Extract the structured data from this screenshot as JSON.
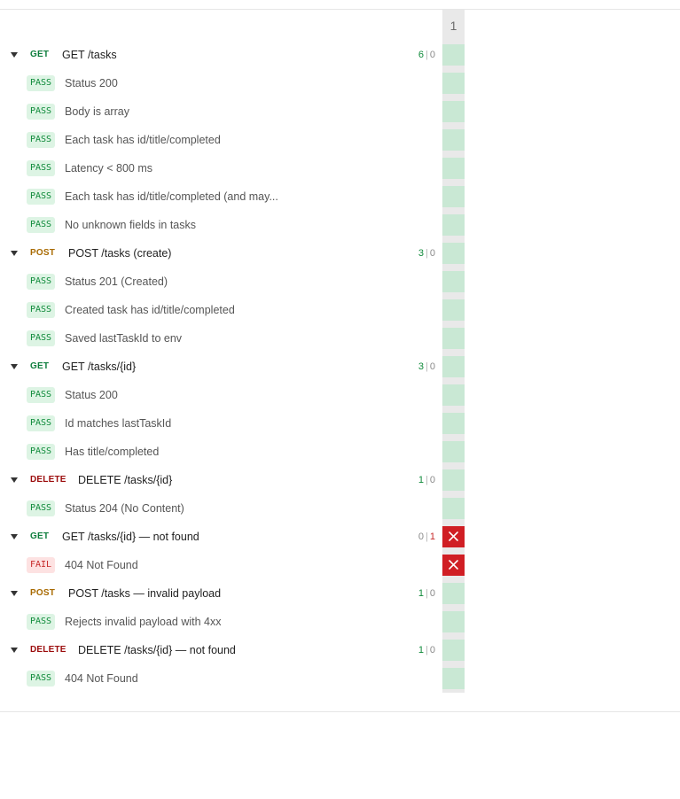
{
  "column_header": "1",
  "colors": {
    "pass_text": "#0f8a3a",
    "pass_bg": "#ddf4e4",
    "fail_text": "#c62828",
    "fail_bg": "#fde2e2",
    "get": "#0d7d3c",
    "post": "#a86a00",
    "delete": "#9b0b0b",
    "pass_cell": "#c9e8d4",
    "fail_cell": "#d01e24"
  },
  "groups": [
    {
      "method": "GET",
      "name": "GET /tasks",
      "passed": "6",
      "failed": "0",
      "result": "pass",
      "tests": [
        {
          "status": "PASS",
          "name": "Status 200"
        },
        {
          "status": "PASS",
          "name": "Body is array"
        },
        {
          "status": "PASS",
          "name": "Each task has id/title/completed"
        },
        {
          "status": "PASS",
          "name": "Latency < 800 ms"
        },
        {
          "status": "PASS",
          "name": "Each task has id/title/completed (and may..."
        },
        {
          "status": "PASS",
          "name": "No unknown fields in tasks"
        }
      ]
    },
    {
      "method": "POST",
      "name": "POST /tasks (create)",
      "passed": "3",
      "failed": "0",
      "result": "pass",
      "tests": [
        {
          "status": "PASS",
          "name": "Status 201 (Created)"
        },
        {
          "status": "PASS",
          "name": "Created task has id/title/completed"
        },
        {
          "status": "PASS",
          "name": "Saved lastTaskId to env"
        }
      ]
    },
    {
      "method": "GET",
      "name": "GET /tasks/{id}",
      "passed": "3",
      "failed": "0",
      "result": "pass",
      "tests": [
        {
          "status": "PASS",
          "name": "Status 200"
        },
        {
          "status": "PASS",
          "name": "Id matches lastTaskId"
        },
        {
          "status": "PASS",
          "name": "Has title/completed"
        }
      ]
    },
    {
      "method": "DELETE",
      "name": "DELETE /tasks/{id}",
      "passed": "1",
      "failed": "0",
      "result": "pass",
      "tests": [
        {
          "status": "PASS",
          "name": "Status 204 (No Content)"
        }
      ]
    },
    {
      "method": "GET",
      "name": "GET /tasks/{id} — not found",
      "passed": "0",
      "failed": "1",
      "result": "fail",
      "tests": [
        {
          "status": "FAIL",
          "name": "404 Not Found"
        }
      ]
    },
    {
      "method": "POST",
      "name": "POST /tasks — invalid payload",
      "passed": "1",
      "failed": "0",
      "result": "pass",
      "tests": [
        {
          "status": "PASS",
          "name": "Rejects invalid payload with 4xx"
        }
      ]
    },
    {
      "method": "DELETE",
      "name": "DELETE /tasks/{id} — not found",
      "passed": "1",
      "failed": "0",
      "result": "pass",
      "tests": [
        {
          "status": "PASS",
          "name": "404 Not Found"
        }
      ]
    }
  ]
}
